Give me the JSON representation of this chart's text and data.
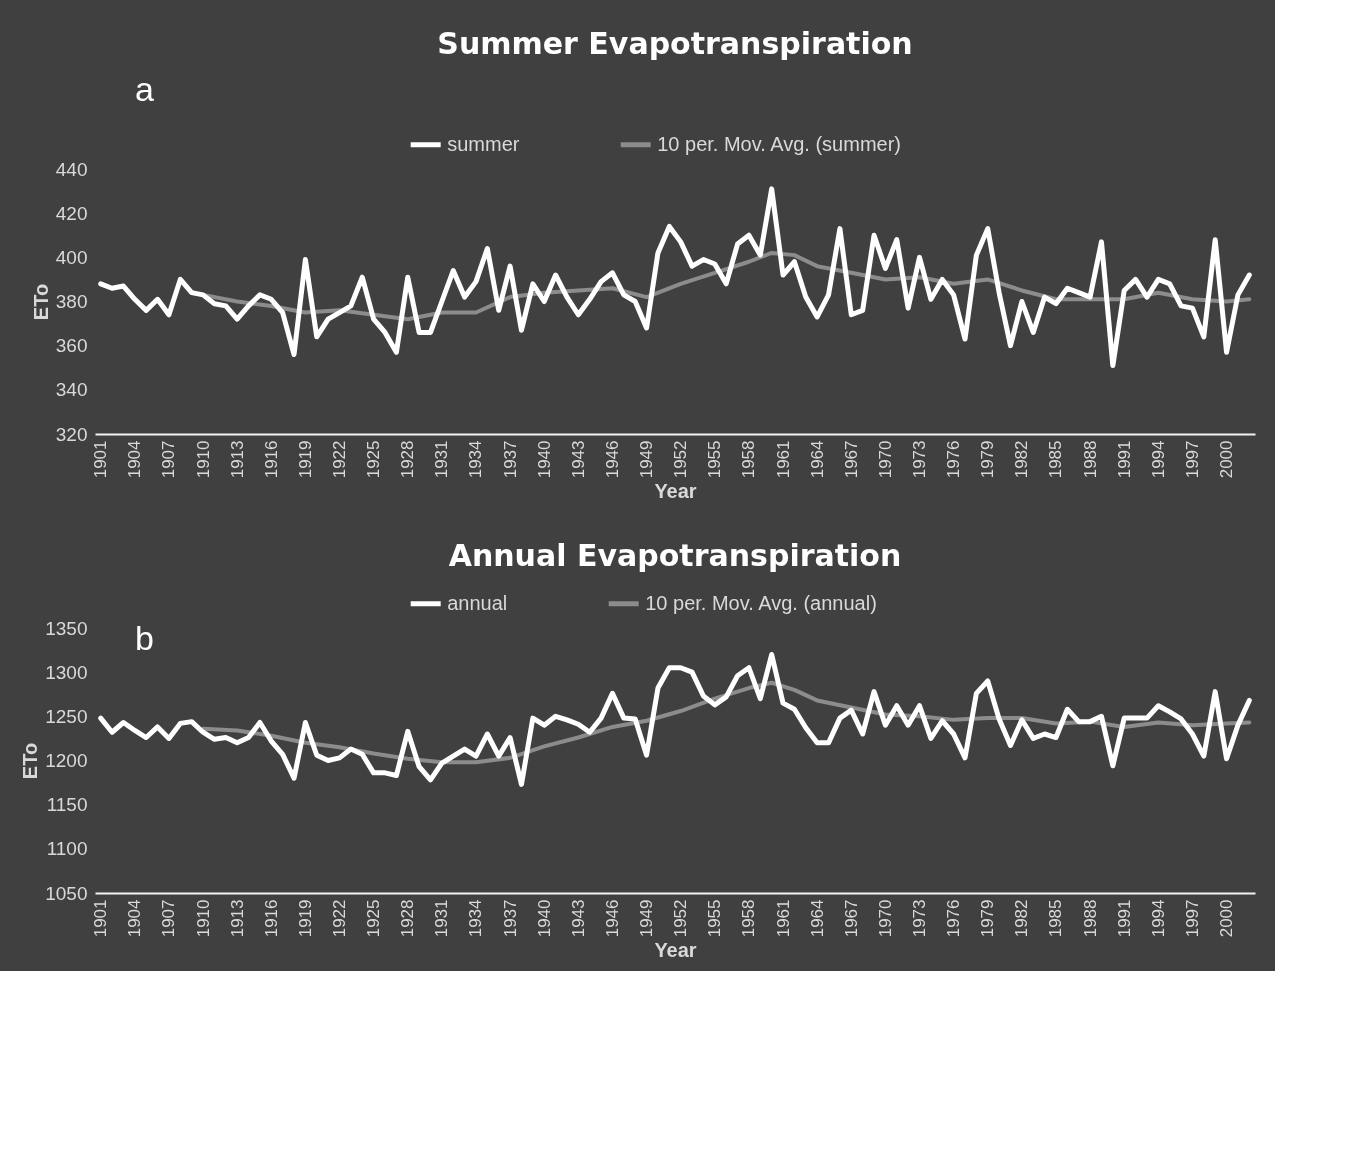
{
  "chart_data": [
    {
      "type": "line",
      "title": "Summer Evapotranspiration",
      "xlabel": "Year",
      "ylabel": "ETo",
      "annotations": [
        "a"
      ],
      "legend": "top",
      "marker": "none",
      "line_style": "solid",
      "grid": false,
      "x": [
        1901,
        1902,
        1903,
        1904,
        1905,
        1906,
        1907,
        1908,
        1909,
        1910,
        1911,
        1912,
        1913,
        1914,
        1915,
        1916,
        1917,
        1918,
        1919,
        1920,
        1921,
        1922,
        1923,
        1924,
        1925,
        1926,
        1927,
        1928,
        1929,
        1930,
        1931,
        1932,
        1933,
        1934,
        1935,
        1936,
        1937,
        1938,
        1939,
        1940,
        1941,
        1942,
        1943,
        1944,
        1945,
        1946,
        1947,
        1948,
        1949,
        1950,
        1951,
        1952,
        1953,
        1954,
        1955,
        1956,
        1957,
        1958,
        1959,
        1960,
        1961,
        1962,
        1963,
        1964,
        1965,
        1966,
        1967,
        1968,
        1969,
        1970,
        1971,
        1972,
        1973,
        1974,
        1975,
        1976,
        1977,
        1978,
        1979,
        1980,
        1981,
        1982,
        1983,
        1984,
        1985,
        1986,
        1987,
        1988,
        1989,
        1990,
        1991,
        1992,
        1993,
        1994,
        1995,
        1996,
        1997,
        1998,
        1999,
        2000,
        2001,
        2002
      ],
      "xlim": [
        1900.5,
        2002.5
      ],
      "xticks": [
        1901,
        1904,
        1907,
        1910,
        1913,
        1916,
        1919,
        1922,
        1925,
        1928,
        1931,
        1934,
        1937,
        1940,
        1943,
        1946,
        1949,
        1952,
        1955,
        1958,
        1961,
        1964,
        1967,
        1970,
        1973,
        1976,
        1979,
        1982,
        1985,
        1988,
        1991,
        1994,
        1997,
        2000
      ],
      "ylim": [
        320,
        440
      ],
      "yticks": [
        320,
        340,
        360,
        380,
        400,
        420,
        440
      ],
      "series": [
        {
          "name": "summer",
          "color": "#ffffff",
          "values": [
            388,
            386,
            387,
            381,
            376,
            381,
            374,
            390,
            384,
            383,
            379,
            378,
            372,
            378,
            383,
            381,
            375,
            356,
            399,
            364,
            372,
            375,
            378,
            391,
            372,
            366,
            357,
            391,
            366,
            366,
            380,
            394,
            382,
            389,
            404,
            376,
            396,
            367,
            388,
            380,
            392,
            382,
            374,
            381,
            389,
            393,
            383,
            380,
            368,
            402,
            414,
            407,
            396,
            399,
            397,
            388,
            406,
            410,
            401,
            431,
            392,
            398,
            382,
            373,
            383,
            413,
            374,
            376,
            410,
            395,
            408,
            377,
            400,
            381,
            390,
            383,
            363,
            401,
            413,
            384,
            360,
            380,
            366,
            382,
            379,
            386,
            384,
            382,
            407,
            351,
            385,
            390,
            382,
            390,
            388,
            378,
            377,
            364,
            408,
            357,
            383,
            392
          ]
        },
        {
          "name": "10 per. Mov. Avg. (summer)",
          "color": "#8c8c8c",
          "type": "line",
          "x": [
            1910,
            1913,
            1916,
            1919,
            1922,
            1925,
            1928,
            1931,
            1934,
            1937,
            1940,
            1943,
            1946,
            1949,
            1952,
            1955,
            1958,
            1960,
            1962,
            1964,
            1967,
            1970,
            1973,
            1976,
            1979,
            1982,
            1985,
            1988,
            1991,
            1994,
            1997,
            2000,
            2002
          ],
          "values": [
            383,
            380,
            378,
            375,
            376,
            374,
            372,
            375,
            375,
            382,
            384,
            385,
            386,
            382,
            388,
            393,
            398,
            402,
            401,
            396,
            393,
            390,
            391,
            388,
            390,
            385,
            381,
            381,
            381,
            384,
            381,
            380,
            381
          ]
        }
      ]
    },
    {
      "type": "line",
      "title": "Annual Evapotranspiration",
      "xlabel": "Year",
      "ylabel": "ETo",
      "annotations": [
        "b"
      ],
      "legend": "top",
      "marker": "none",
      "line_style": "solid",
      "grid": false,
      "x": [
        1901,
        1902,
        1903,
        1904,
        1905,
        1906,
        1907,
        1908,
        1909,
        1910,
        1911,
        1912,
        1913,
        1914,
        1915,
        1916,
        1917,
        1918,
        1919,
        1920,
        1921,
        1922,
        1923,
        1924,
        1925,
        1926,
        1927,
        1928,
        1929,
        1930,
        1931,
        1932,
        1933,
        1934,
        1935,
        1936,
        1937,
        1938,
        1939,
        1940,
        1941,
        1942,
        1943,
        1944,
        1945,
        1946,
        1947,
        1948,
        1949,
        1950,
        1951,
        1952,
        1953,
        1954,
        1955,
        1956,
        1957,
        1958,
        1959,
        1960,
        1961,
        1962,
        1963,
        1964,
        1965,
        1966,
        1967,
        1968,
        1969,
        1970,
        1971,
        1972,
        1973,
        1974,
        1975,
        1976,
        1977,
        1978,
        1979,
        1980,
        1981,
        1982,
        1983,
        1984,
        1985,
        1986,
        1987,
        1988,
        1989,
        1990,
        1991,
        1992,
        1993,
        1994,
        1995,
        1996,
        1997,
        1998,
        1999,
        2000,
        2001,
        2002
      ],
      "xlim": [
        1900.5,
        2002.5
      ],
      "xticks": [
        1901,
        1904,
        1907,
        1910,
        1913,
        1916,
        1919,
        1922,
        1925,
        1928,
        1931,
        1934,
        1937,
        1940,
        1943,
        1946,
        1949,
        1952,
        1955,
        1958,
        1961,
        1964,
        1967,
        1970,
        1973,
        1976,
        1979,
        1982,
        1985,
        1988,
        1991,
        1994,
        1997,
        2000
      ],
      "ylim": [
        1050,
        1350
      ],
      "yticks": [
        1050,
        1100,
        1150,
        1200,
        1250,
        1300,
        1350
      ],
      "series": [
        {
          "name": "annual",
          "color": "#ffffff",
          "values": [
            1248,
            1232,
            1243,
            1234,
            1226,
            1238,
            1225,
            1242,
            1244,
            1232,
            1224,
            1226,
            1220,
            1226,
            1243,
            1222,
            1207,
            1180,
            1243,
            1206,
            1200,
            1203,
            1213,
            1207,
            1186,
            1186,
            1183,
            1233,
            1193,
            1178,
            1197,
            1205,
            1213,
            1205,
            1230,
            1205,
            1226,
            1173,
            1248,
            1240,
            1250,
            1246,
            1241,
            1232,
            1248,
            1276,
            1248,
            1247,
            1206,
            1282,
            1305,
            1305,
            1300,
            1273,
            1263,
            1272,
            1296,
            1305,
            1270,
            1320,
            1265,
            1258,
            1237,
            1220,
            1220,
            1248,
            1257,
            1230,
            1278,
            1240,
            1262,
            1240,
            1262,
            1225,
            1245,
            1230,
            1203,
            1276,
            1290,
            1247,
            1217,
            1246,
            1225,
            1230,
            1226,
            1258,
            1244,
            1244,
            1250,
            1194,
            1248,
            1248,
            1248,
            1262,
            1255,
            1247,
            1230,
            1205,
            1278,
            1202,
            1240,
            1268
          ]
        },
        {
          "name": "10 per. Mov. Avg. (annual)",
          "color": "#8c8c8c",
          "type": "line",
          "x": [
            1910,
            1913,
            1916,
            1919,
            1922,
            1925,
            1928,
            1931,
            1934,
            1937,
            1940,
            1943,
            1946,
            1949,
            1952,
            1955,
            1958,
            1960,
            1962,
            1964,
            1967,
            1970,
            1973,
            1976,
            1979,
            1982,
            1985,
            1988,
            1991,
            1994,
            1997,
            2000,
            2002
          ],
          "values": [
            1236,
            1234,
            1228,
            1220,
            1215,
            1208,
            1202,
            1198,
            1198,
            1203,
            1216,
            1226,
            1238,
            1245,
            1256,
            1270,
            1282,
            1288,
            1280,
            1268,
            1260,
            1252,
            1250,
            1246,
            1248,
            1248,
            1242,
            1244,
            1238,
            1243,
            1240,
            1242,
            1243
          ]
        }
      ]
    }
  ]
}
